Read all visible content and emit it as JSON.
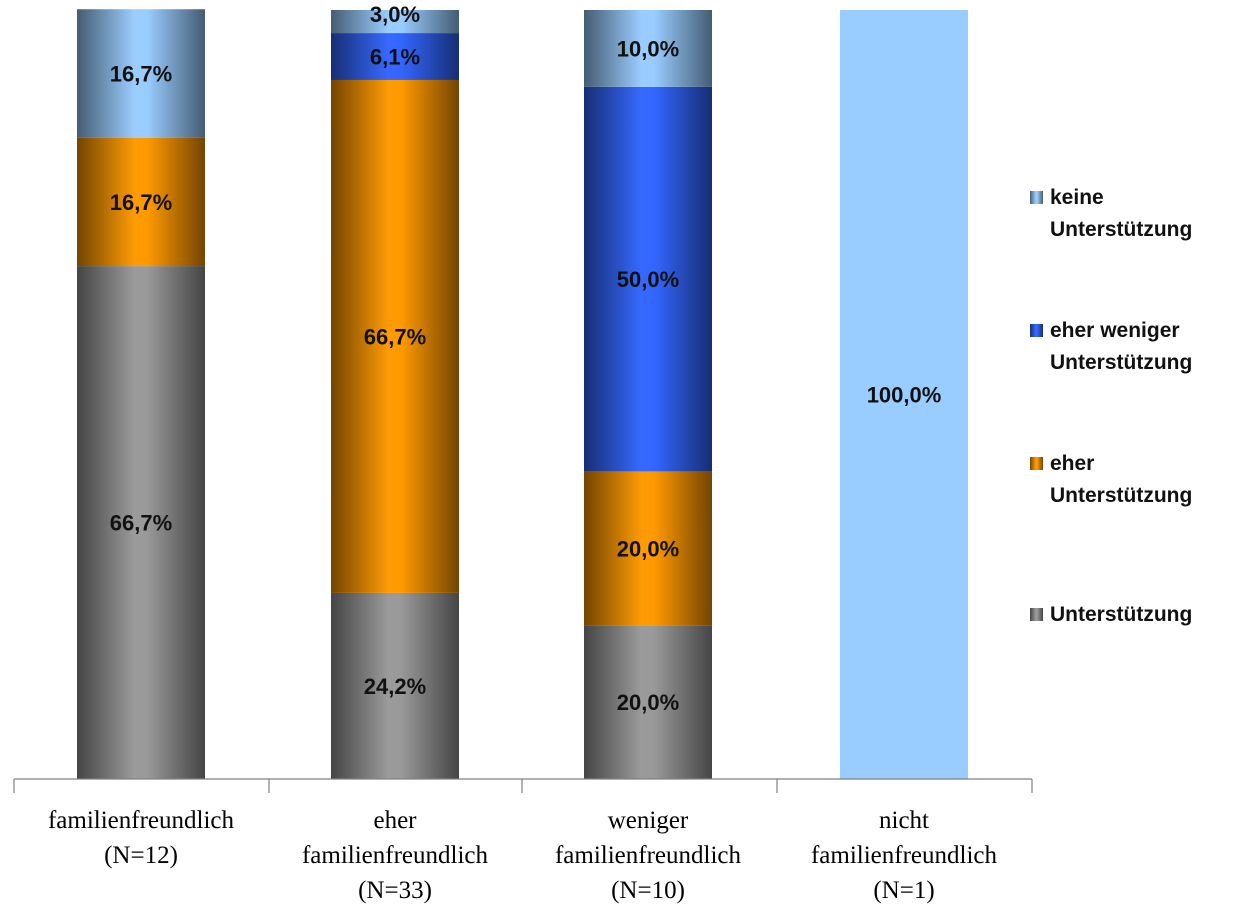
{
  "colors": {
    "keine": "#99ccff",
    "eher_weniger": "#3366ff",
    "eher": "#ff9900",
    "unterstuetzung": "#999999"
  },
  "chart_data": {
    "type": "bar",
    "stacked": true,
    "title": "",
    "xlabel": "",
    "ylabel": "",
    "ylim": [
      0,
      100
    ],
    "grid": false,
    "legend_position": "right",
    "categories": [
      [
        "familienfreundlich",
        "(N=12)"
      ],
      [
        "eher",
        "familienfreundlich",
        "(N=33)"
      ],
      [
        "weniger",
        "familienfreundlich",
        "(N=10)"
      ],
      [
        "nicht",
        "familienfreundlich",
        "(N=1)"
      ]
    ],
    "series": [
      {
        "key": "unterstuetzung",
        "name": "Unterstützung",
        "legend_lines": [
          "Unterstützung"
        ],
        "values": [
          66.7,
          24.2,
          20.0,
          0
        ],
        "labels": [
          "66,7%",
          "24,2%",
          "20,0%",
          ""
        ]
      },
      {
        "key": "eher",
        "name": "eher Unterstützung",
        "legend_lines": [
          "eher",
          "Unterstützung"
        ],
        "values": [
          16.7,
          66.7,
          20.0,
          0
        ],
        "labels": [
          "16,7%",
          "66,7%",
          "20,0%",
          ""
        ]
      },
      {
        "key": "eher_weniger",
        "name": "eher weniger Unterstützung",
        "legend_lines": [
          "eher weniger",
          "Unterstützung"
        ],
        "values": [
          0,
          6.1,
          50.0,
          0
        ],
        "labels": [
          "",
          "6,1%",
          "50,0%",
          ""
        ]
      },
      {
        "key": "keine",
        "name": "keine Unterstützung",
        "legend_lines": [
          "keine",
          "Unterstützung"
        ],
        "values": [
          16.7,
          3.0,
          10.0,
          100.0
        ],
        "labels": [
          "16,7%",
          "3,0%",
          "10,0%",
          "100,0%"
        ],
        "flat_fill_categories": [
          3
        ]
      }
    ]
  }
}
